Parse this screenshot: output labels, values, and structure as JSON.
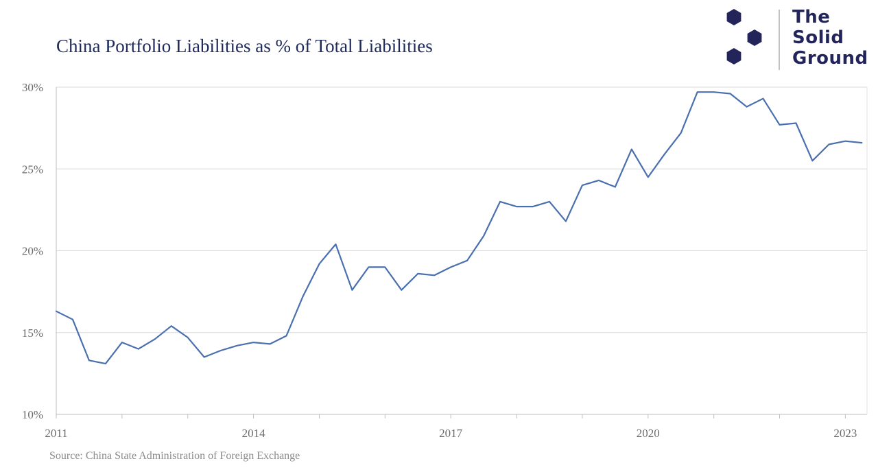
{
  "brand": {
    "line1": "The",
    "line2": "Solid",
    "line3": "Ground",
    "color": "#23255a"
  },
  "source": "Source: China State Administration of Foreign Exchange",
  "chart_data": {
    "type": "line",
    "title": "China Portfolio Liabilities as % of Total Liabilities",
    "xlabel": "",
    "ylabel": "",
    "ylim": [
      10,
      30
    ],
    "y_ticks": [
      10,
      15,
      20,
      25,
      30
    ],
    "y_tick_labels": [
      "10%",
      "15%",
      "20%",
      "25%",
      "30%"
    ],
    "x_ticks": [
      2011,
      2014,
      2017,
      2020,
      2023
    ],
    "x_tick_labels": [
      "2011",
      "2014",
      "2017",
      "2020",
      "2023"
    ],
    "xlim": [
      2011,
      2023.33
    ],
    "grid": "horizontal",
    "line_color": "#4a6fae",
    "series": [
      {
        "x": [
          2011.0,
          2011.25,
          2011.5,
          2011.75,
          2012.0,
          2012.25,
          2012.5,
          2012.75,
          2013.0,
          2013.25,
          2013.5,
          2013.75,
          2014.0,
          2014.25,
          2014.5,
          2014.75,
          2015.0,
          2015.25,
          2015.5,
          2015.75,
          2016.0,
          2016.25,
          2016.5,
          2016.75,
          2017.0,
          2017.25,
          2017.5,
          2017.75,
          2018.0,
          2018.25,
          2018.5,
          2018.75,
          2019.0,
          2019.25,
          2019.5,
          2019.75,
          2020.0,
          2020.25,
          2020.5,
          2020.75,
          2021.0,
          2021.25,
          2021.5,
          2021.75,
          2022.0,
          2022.25,
          2022.5,
          2022.75,
          2023.0,
          2023.25
        ],
        "y": [
          16.3,
          15.8,
          13.3,
          13.1,
          14.4,
          14.0,
          14.6,
          15.4,
          14.7,
          13.5,
          13.9,
          14.2,
          14.4,
          14.3,
          14.8,
          17.2,
          19.2,
          20.4,
          17.6,
          19.0,
          19.0,
          17.6,
          18.6,
          18.5,
          19.0,
          19.4,
          20.9,
          23.0,
          22.7,
          22.7,
          23.0,
          21.8,
          24.0,
          24.3,
          23.9,
          26.2,
          24.5,
          25.9,
          27.2,
          29.7,
          29.7,
          29.6,
          28.8,
          29.3,
          27.7,
          27.8,
          25.5,
          26.5,
          26.7,
          26.6
        ]
      }
    ]
  }
}
